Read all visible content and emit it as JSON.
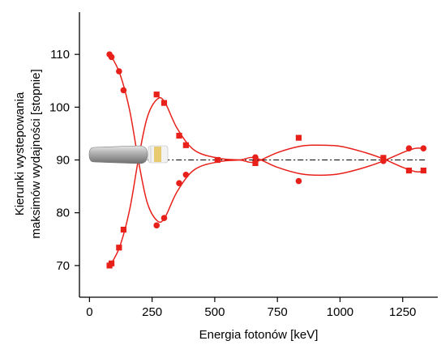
{
  "chart_data": {
    "type": "scatter",
    "xlabel": "Energia fotonów [keV]",
    "ylabel_lines": [
      "Kierunki wystepowania",
      "maksimów wydajności [stopnie]"
    ],
    "xlim": [
      -40,
      1390
    ],
    "ylim": [
      64,
      118
    ],
    "xticks": [
      0,
      250,
      500,
      750,
      1000,
      1250
    ],
    "yticks": [
      70,
      80,
      90,
      100,
      110
    ],
    "reference_line": {
      "y": 90,
      "x_from": 200,
      "x_to": 1340,
      "style": "dash-dot"
    },
    "grid": false,
    "colors": {
      "series": "#e8201a",
      "axis": "#000000",
      "reference": "#000000"
    },
    "icon": "detector-crystal-icon",
    "series": [
      {
        "marker": "circle",
        "points": [
          [
            80,
            110
          ],
          [
            88,
            109.5
          ],
          [
            118,
            106.8
          ],
          [
            136,
            103.2
          ],
          [
            268,
            77.6
          ],
          [
            298,
            79
          ],
          [
            358,
            85.6
          ],
          [
            385,
            87.2
          ],
          [
            662,
            90.5
          ],
          [
            835,
            86
          ],
          [
            1173,
            89.8
          ],
          [
            1275,
            92.2
          ],
          [
            1333,
            92.2
          ]
        ],
        "curve": [
          [
            80,
            110.2
          ],
          [
            120,
            106.5
          ],
          [
            160,
            99.5
          ],
          [
            195,
            90
          ],
          [
            230,
            82
          ],
          [
            270,
            78.5
          ],
          [
            300,
            79
          ],
          [
            350,
            84
          ],
          [
            420,
            88.2
          ],
          [
            520,
            89.7
          ],
          [
            600,
            90
          ],
          [
            660,
            90.4
          ],
          [
            750,
            88.6
          ],
          [
            840,
            87.4
          ],
          [
            920,
            87.1
          ],
          [
            1000,
            87.4
          ],
          [
            1100,
            88.6
          ],
          [
            1173,
            89.8
          ],
          [
            1250,
            91.4
          ],
          [
            1300,
            92.2
          ],
          [
            1333,
            92.2
          ]
        ]
      },
      {
        "marker": "square",
        "points": [
          [
            80,
            70
          ],
          [
            88,
            70.4
          ],
          [
            118,
            73.4
          ],
          [
            136,
            76.8
          ],
          [
            268,
            102.4
          ],
          [
            298,
            100.8
          ],
          [
            358,
            94.6
          ],
          [
            385,
            92.8
          ],
          [
            511,
            90
          ],
          [
            662,
            89.4
          ],
          [
            835,
            94.2
          ],
          [
            1173,
            90.4
          ],
          [
            1275,
            88
          ],
          [
            1333,
            88
          ]
        ],
        "curve": [
          [
            80,
            69.8
          ],
          [
            120,
            73.5
          ],
          [
            160,
            80.5
          ],
          [
            195,
            90
          ],
          [
            230,
            98
          ],
          [
            270,
            101.5
          ],
          [
            300,
            101
          ],
          [
            350,
            96
          ],
          [
            420,
            91.8
          ],
          [
            520,
            90.3
          ],
          [
            600,
            90
          ],
          [
            660,
            89.6
          ],
          [
            750,
            91.4
          ],
          [
            840,
            92.6
          ],
          [
            900,
            92.8
          ],
          [
            1000,
            92.6
          ],
          [
            1100,
            91.4
          ],
          [
            1173,
            90.2
          ],
          [
            1250,
            88.6
          ],
          [
            1300,
            87.8
          ],
          [
            1333,
            87.8
          ]
        ]
      }
    ]
  }
}
